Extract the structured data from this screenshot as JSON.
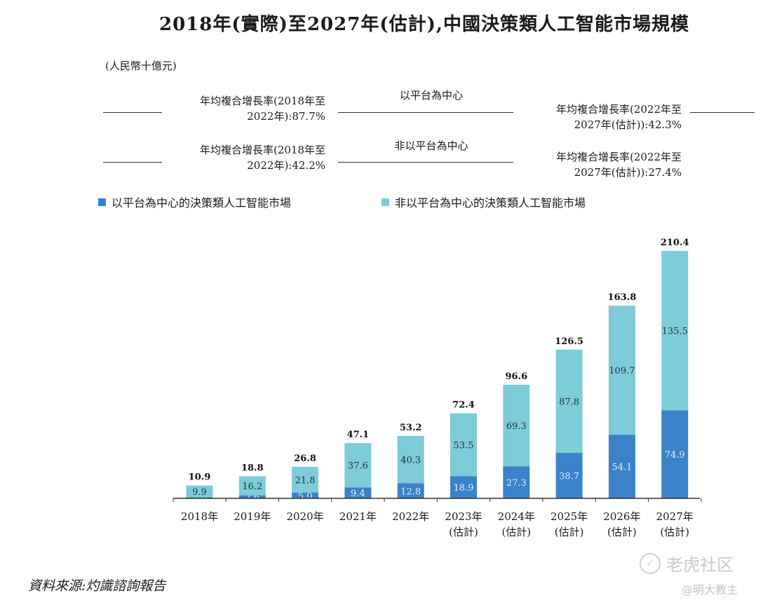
{
  "title": "2018年(實際)至2027年(估計),中國決策類人工智能市場規模",
  "unit": "(人民幣十億元)",
  "cagr_blocks": [
    {
      "segment": "以平台為中心",
      "left": [
        "年均複合增長率(2018年至",
        "2022年):87.7%"
      ],
      "right": [
        "年均複合增長率(2022年至",
        "2027年(估計)):42.3%"
      ]
    },
    {
      "segment": "非以平台為中心",
      "left": [
        "年均複合增長率(2018年至",
        "2022年):42.2%"
      ],
      "right": [
        "年均複合增長率(2022年至",
        "2027年(估計)):27.4%"
      ]
    }
  ],
  "legend": [
    {
      "label": "以平台為中心的決策類人工智能市場",
      "color": "#3a82c9"
    },
    {
      "label": "非以平台為中心的決策類人工智能市場",
      "color": "#7ecbd9"
    }
  ],
  "source": "資料來源:灼識諮詢報告",
  "watermark": {
    "brand": "老虎社区",
    "handle": "@明大教主"
  },
  "chart_data": {
    "type": "bar",
    "stacked": true,
    "categories": [
      [
        "2018年"
      ],
      [
        "2019年"
      ],
      [
        "2020年"
      ],
      [
        "2021年"
      ],
      [
        "2022年"
      ],
      [
        "2023年",
        "(估計)"
      ],
      [
        "2024年",
        "(估計)"
      ],
      [
        "2025年",
        "(估計)"
      ],
      [
        "2026年",
        "(估計)"
      ],
      [
        "2027年",
        "(估計)"
      ]
    ],
    "series": [
      {
        "name": "以平台為中心的決策類人工智能市場",
        "color": "#3a82c9",
        "values": [
          1.0,
          2.6,
          5.0,
          9.4,
          12.8,
          18.9,
          27.3,
          38.7,
          54.1,
          74.9
        ]
      },
      {
        "name": "非以平台為中心的決策類人工智能市場",
        "color": "#7ecbd9",
        "values": [
          9.9,
          16.2,
          21.8,
          37.6,
          40.3,
          53.5,
          69.3,
          87.8,
          109.7,
          135.5
        ]
      }
    ],
    "totals": [
      10.9,
      18.8,
      26.8,
      47.1,
      53.2,
      72.4,
      96.6,
      126.5,
      163.8,
      210.4
    ],
    "ylim": [
      0,
      210.4
    ],
    "grid": false,
    "legend_position": "top"
  }
}
